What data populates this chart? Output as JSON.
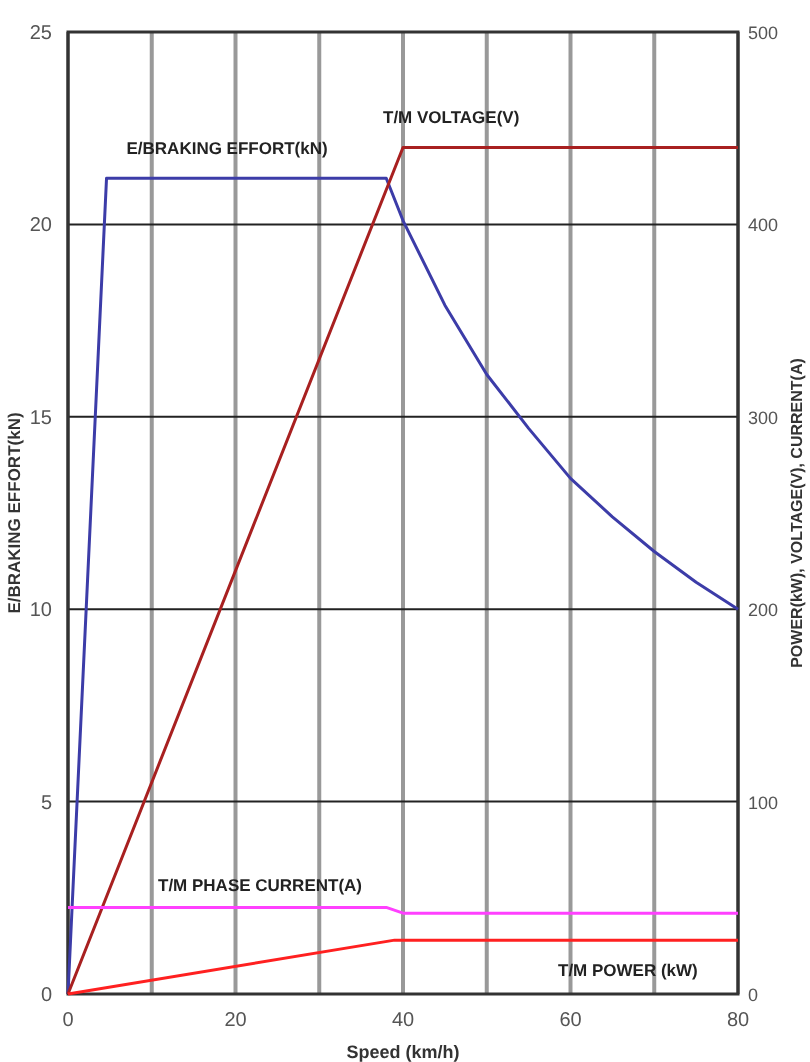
{
  "chart_data": {
    "type": "line",
    "xlabel": "Speed (km/h)",
    "ylabel": "E/BRAKING EFFORT(kN)",
    "y2label": "POWER(kW), VOLTAGE(V), CURRENT(A)",
    "xlim": [
      0,
      80
    ],
    "xticks": [
      0,
      {
        "value": 10,
        "label": null
      },
      20,
      {
        "value": 30,
        "label": null
      },
      40,
      {
        "value": 50,
        "label": null
      },
      60,
      {
        "value": 70,
        "label": null
      },
      80
    ],
    "ylim": [
      0,
      25
    ],
    "yticks": [
      0,
      5,
      10,
      15,
      20,
      25
    ],
    "y2lim": [
      0,
      500
    ],
    "y2ticks": [
      0,
      100,
      200,
      300,
      400,
      500
    ],
    "grid": true,
    "marker": "none",
    "line_style": "solid",
    "series": [
      {
        "name": "E/BRAKING EFFORT(kN)",
        "color": "#3c3ca8",
        "x": [
          0,
          4.6,
          38,
          40,
          45,
          50,
          55,
          60,
          65,
          70,
          75,
          80
        ],
        "values": [
          0,
          21.2,
          21.2,
          20.1,
          17.9,
          16.1,
          14.7,
          13.4,
          12.4,
          11.5,
          10.7,
          10.0
        ]
      },
      {
        "name": "T/M VOLTAGE(V)",
        "color": "#a82020",
        "axis": "y2",
        "x": [
          0,
          40,
          80
        ],
        "values": [
          0,
          440,
          440
        ]
      },
      {
        "name": "T/M PHASE CURRENT(A)",
        "color": "#ff40ff",
        "axis": "y2",
        "x": [
          0,
          38,
          40,
          80
        ],
        "values": [
          45,
          45,
          42,
          42
        ]
      },
      {
        "name": "T/M POWER (kW)",
        "color": "#ff2020",
        "axis": "y2",
        "x": [
          0,
          39,
          80
        ],
        "values": [
          0,
          28,
          28
        ]
      }
    ]
  }
}
